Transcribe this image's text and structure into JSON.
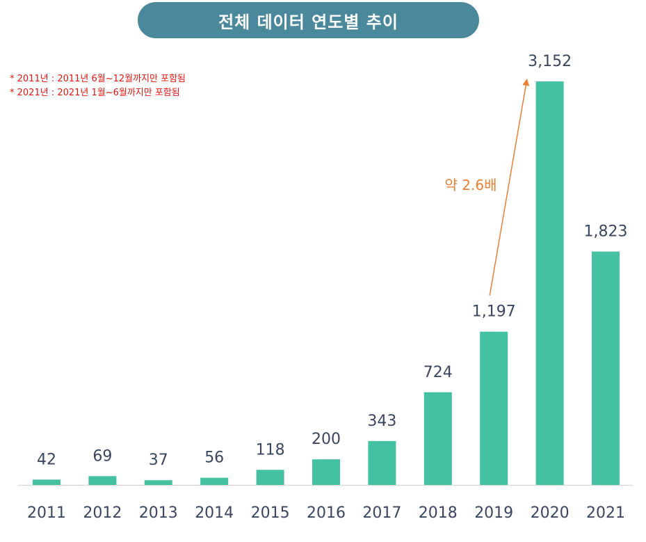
{
  "title": "전체 데이터 연도별 추이",
  "notes": [
    "* 2011년 : 2011년 6월~12월까지만 포함됨",
    "* 2021년 : 2021년 1월~6월까지만 포함됨"
  ],
  "colors": {
    "bar": "#43c1a1",
    "title_bg": "#4a889b",
    "title_text": "#ffffff",
    "note_text": "#e8140f",
    "annotation": "#ed7d31",
    "label_text": "#3a4660",
    "axis_line": "#d9d9d9"
  },
  "chart_data": {
    "type": "bar",
    "categories": [
      "2011",
      "2012",
      "2013",
      "2014",
      "2015",
      "2016",
      "2017",
      "2018",
      "2019",
      "2020",
      "2021"
    ],
    "values": [
      42,
      69,
      37,
      56,
      118,
      200,
      343,
      724,
      1197,
      3152,
      1823
    ],
    "value_labels": [
      "42",
      "69",
      "37",
      "56",
      "118",
      "200",
      "343",
      "724",
      "1,197",
      "3,152",
      "1,823"
    ],
    "title": "전체 데이터 연도별 추이",
    "xlabel": "",
    "ylabel": "",
    "ylim": [
      0,
      3152
    ],
    "grid": false,
    "annotation": {
      "text": "약 2.6배",
      "from": "2019",
      "to": "2020"
    }
  }
}
